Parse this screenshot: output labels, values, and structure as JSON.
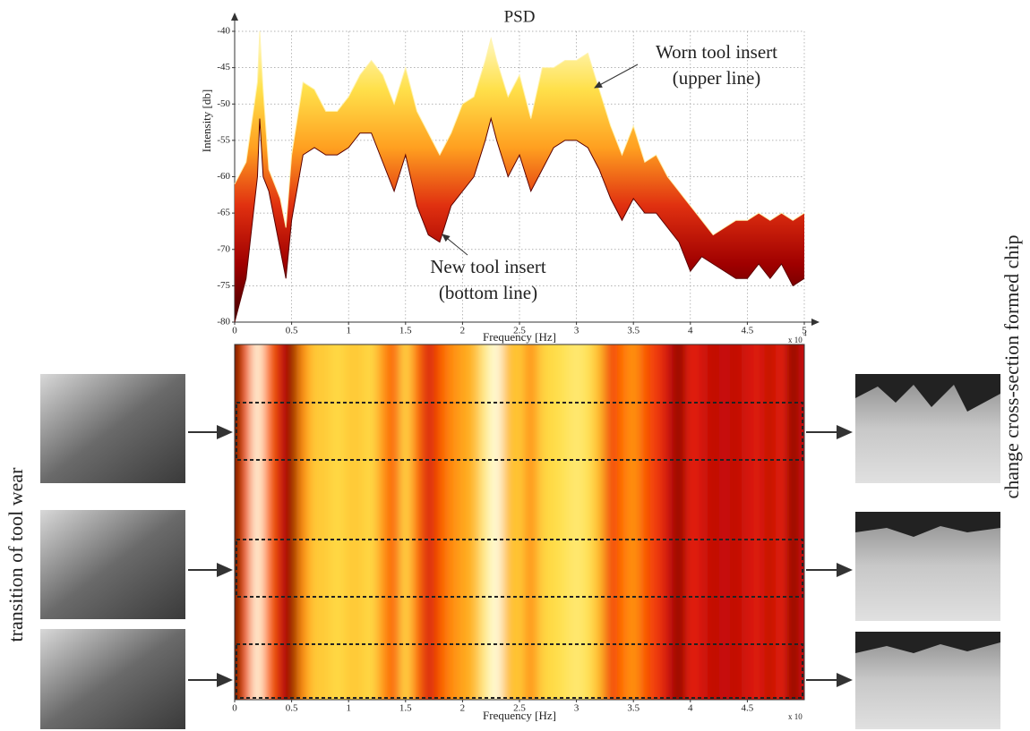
{
  "chart_data": [
    {
      "type": "band",
      "title": "PSD",
      "ylabel": "Intensity [db]",
      "xlabel": "Frequency [Hz]",
      "x_scale_label": "x 10",
      "x_scale_exponent": "4",
      "x": [
        0,
        0.1,
        0.2,
        0.22,
        0.25,
        0.3,
        0.4,
        0.45,
        0.5,
        0.6,
        0.7,
        0.8,
        0.9,
        1.0,
        1.1,
        1.2,
        1.3,
        1.4,
        1.5,
        1.6,
        1.7,
        1.8,
        1.9,
        2.0,
        2.1,
        2.2,
        2.25,
        2.3,
        2.4,
        2.5,
        2.6,
        2.7,
        2.8,
        2.9,
        3.0,
        3.1,
        3.2,
        3.3,
        3.4,
        3.5,
        3.6,
        3.7,
        3.8,
        3.9,
        4.0,
        4.1,
        4.2,
        4.3,
        4.4,
        4.5,
        4.6,
        4.7,
        4.8,
        4.9,
        5.0
      ],
      "series": [
        {
          "name": "Worn tool insert",
          "color": "#fff3b0",
          "values": [
            -61,
            -58,
            -47,
            -40,
            -48,
            -59,
            -63,
            -67,
            -57,
            -47,
            -48,
            -51,
            -51,
            -49,
            -46,
            -44,
            -46,
            -50,
            -45,
            -51,
            -54,
            -57,
            -54,
            -50,
            -49,
            -44,
            -41,
            -44,
            -49,
            -46,
            -52,
            -45,
            -45,
            -44,
            -44,
            -43,
            -48,
            -53,
            -57,
            -53,
            -58,
            -57,
            -60,
            -62,
            -64,
            -66,
            -68,
            -67,
            -66,
            -66,
            -65,
            -66,
            -65,
            -66,
            -65
          ]
        },
        {
          "name": "New tool insert",
          "color": "#5a0000",
          "values": [
            -80,
            -74,
            -60,
            -52,
            -60,
            -62,
            -70,
            -74,
            -66,
            -57,
            -56,
            -57,
            -57,
            -56,
            -54,
            -54,
            -58,
            -62,
            -57,
            -64,
            -68,
            -69,
            -64,
            -62,
            -60,
            -55,
            -52,
            -55,
            -60,
            -57,
            -62,
            -59,
            -56,
            -55,
            -55,
            -56,
            -59,
            -63,
            -66,
            -63,
            -65,
            -65,
            -67,
            -69,
            -73,
            -71,
            -72,
            -73,
            -74,
            -74,
            -72,
            -74,
            -72,
            -75,
            -74
          ]
        }
      ],
      "colors": [
        "#fffbd0",
        "#ffe04a",
        "#ffa020",
        "#e03010",
        "#a00000",
        "#400000"
      ],
      "annotations": [
        {
          "lines": [
            "Worn tool insert",
            "(upper line)"
          ]
        },
        {
          "lines": [
            "New tool insert",
            "(bottom line)"
          ]
        }
      ],
      "xlim": [
        0,
        5
      ],
      "xticks": [
        0,
        0.5,
        1,
        1.5,
        2,
        2.5,
        3,
        3.5,
        4,
        4.5,
        5
      ],
      "ylim": [
        -80,
        -40
      ],
      "yticks": [
        -80,
        -75,
        -70,
        -65,
        -60,
        -55,
        -50,
        -45,
        -40
      ],
      "grid": true
    },
    {
      "type": "heatmap",
      "xlabel": "Frequency [Hz]",
      "x_scale_label": "x 10",
      "x": [
        0,
        0.1,
        0.2,
        0.3,
        0.4,
        0.5,
        0.6,
        0.7,
        0.8,
        0.9,
        1.0,
        1.1,
        1.2,
        1.3,
        1.4,
        1.5,
        1.6,
        1.7,
        1.8,
        1.9,
        2.0,
        2.1,
        2.2,
        2.3,
        2.4,
        2.5,
        2.6,
        2.7,
        2.8,
        2.9,
        3.0,
        3.1,
        3.2,
        3.3,
        3.4,
        3.5,
        3.6,
        3.7,
        3.8,
        3.9,
        4.0,
        4.1,
        4.2,
        4.3,
        4.4,
        4.5,
        4.6,
        4.7,
        4.8,
        4.9,
        5.0
      ],
      "values": [
        -75,
        -60,
        -42,
        -58,
        -66,
        -72,
        -56,
        -50,
        -50,
        -48,
        -50,
        -50,
        -48,
        -55,
        -60,
        -48,
        -58,
        -66,
        -60,
        -56,
        -54,
        -52,
        -45,
        -42,
        -52,
        -50,
        -56,
        -49,
        -48,
        -47,
        -46,
        -47,
        -52,
        -62,
        -58,
        -55,
        -60,
        -62,
        -66,
        -72,
        -64,
        -66,
        -68,
        -67,
        -68,
        -66,
        -65,
        -68,
        -64,
        -72,
        -66
      ],
      "colors": [
        "#4a0000",
        "#b00000",
        "#e82010",
        "#ff6a00",
        "#ffb020",
        "#ffe04a",
        "#fffde0"
      ],
      "xlim": [
        0,
        5
      ],
      "xticks": [
        0,
        0.5,
        1,
        1.5,
        2,
        2.5,
        3,
        3.5,
        4,
        4.5
      ]
    }
  ],
  "figure": {
    "left_label": "transition of tool wear",
    "right_label": "change cross-section formed chip"
  }
}
